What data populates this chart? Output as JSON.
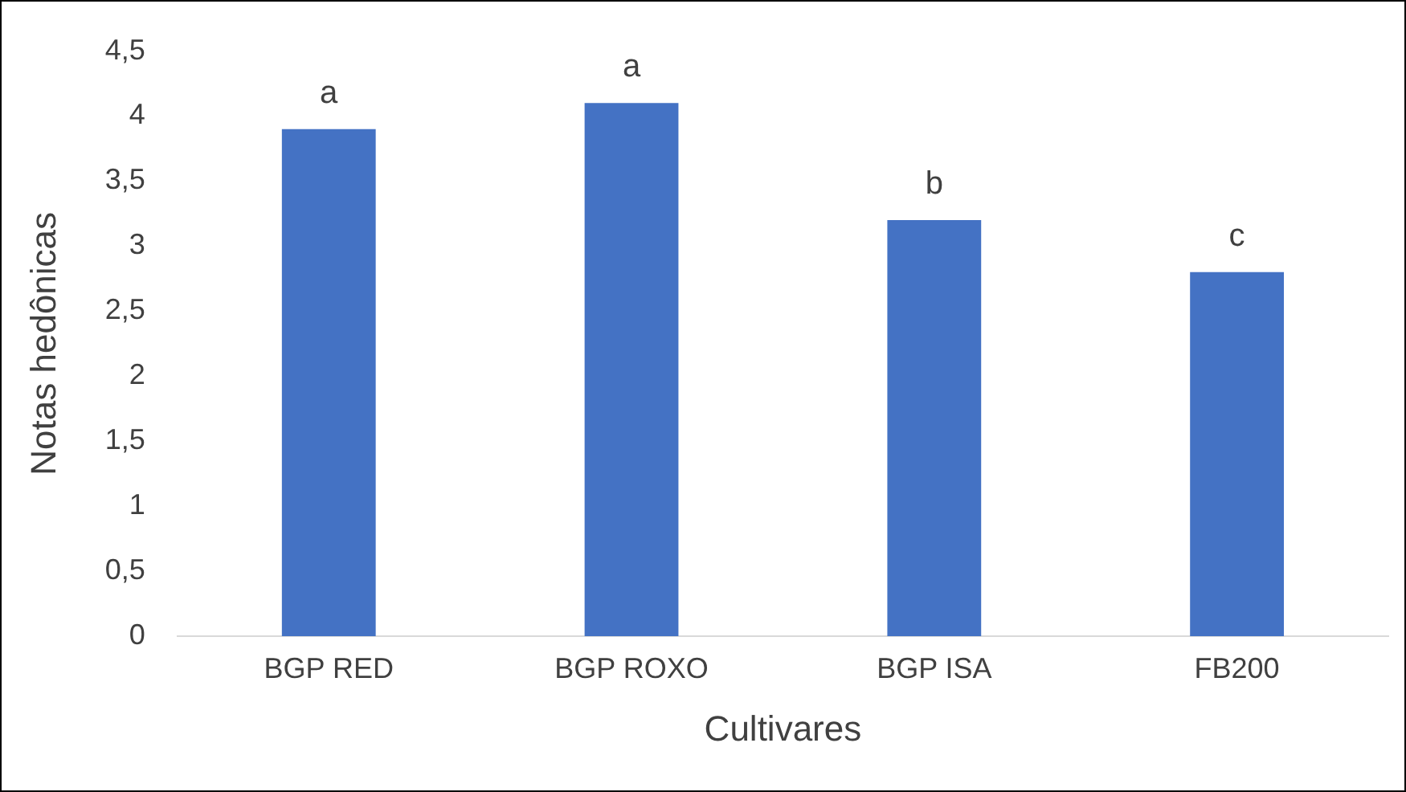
{
  "chart_data": {
    "type": "bar",
    "xlabel": "Cultivares",
    "ylabel": "Notas hedônicas",
    "categories": [
      "BGP RED",
      "BGP ROXO",
      "BGP ISA",
      "FB200"
    ],
    "values": [
      3.9,
      4.1,
      3.2,
      2.8
    ],
    "color": "#4472c4",
    "ylim": [
      0,
      4.5
    ],
    "yticks": [
      0,
      {
        "value": 0.5,
        "label": "0,5"
      },
      1,
      {
        "value": 1.5,
        "label": "1,5"
      },
      2,
      {
        "value": 2.5,
        "label": "2,5"
      },
      3,
      {
        "value": 3.5,
        "label": "3,5"
      },
      4,
      {
        "value": 4.5,
        "label": "4,5"
      }
    ],
    "grid": false,
    "legend": false,
    "annotations": [
      {
        "text": "a",
        "x": "BGP RED",
        "y": 3.9
      },
      {
        "text": "a",
        "x": "BGP ROXO",
        "y": 4.1
      },
      {
        "text": "b",
        "x": "BGP ISA",
        "y": 3.2
      },
      {
        "text": "c",
        "x": "FB200",
        "y": 2.8
      }
    ]
  }
}
